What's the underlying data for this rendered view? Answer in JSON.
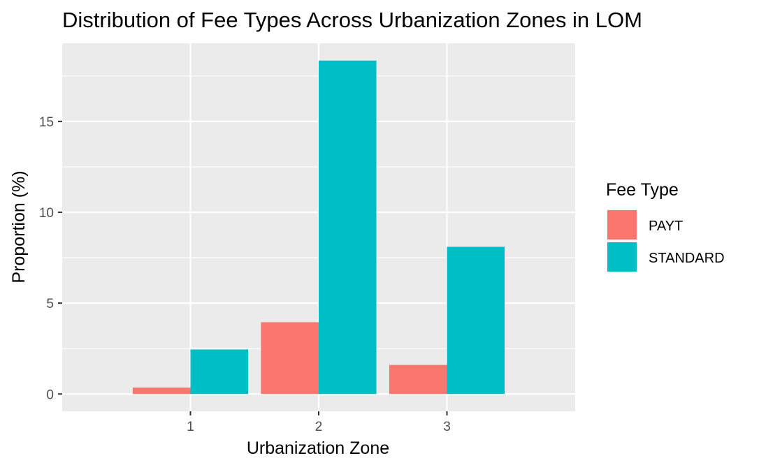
{
  "chart_data": {
    "type": "bar",
    "title": "Distribution of Fee Types Across Urbanization Zones in LOM",
    "xlabel": "Urbanization Zone",
    "ylabel": "Proportion (%)",
    "categories": [
      "1",
      "2",
      "3"
    ],
    "series": [
      {
        "name": "PAYT",
        "values": [
          0.35,
          3.95,
          1.6
        ],
        "color": "#F8766D"
      },
      {
        "name": "STANDARD",
        "values": [
          2.45,
          18.35,
          8.1
        ],
        "color": "#00BFC4"
      }
    ],
    "ylim": [
      -0.95,
      19.3
    ],
    "yticks": [
      0,
      5,
      10,
      15
    ],
    "grid": true,
    "legend": {
      "title": "Fee Type",
      "placement": "right"
    },
    "colors": {
      "panel_background": "#EBEBEB",
      "grid": "#FFFFFF",
      "tick_text": "#4D4D4D",
      "tick_mark": "#333333"
    }
  }
}
